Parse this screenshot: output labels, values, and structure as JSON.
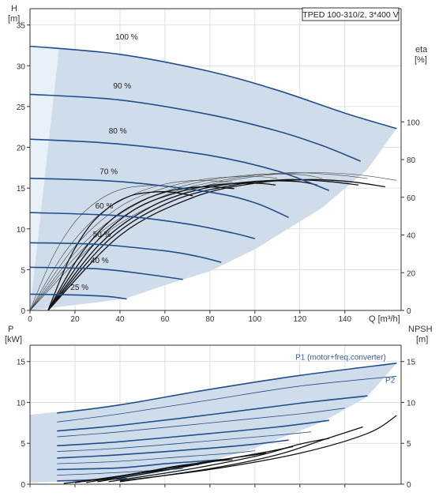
{
  "colors": {
    "region_fill": "#cfdcea",
    "region_left_fill": "#e8f1fa",
    "curve_blue": "#1f4e8c",
    "efficiency_black": "#111111",
    "efficiency_thin": "#444444",
    "axis": "#333333",
    "grid": "#d8d8d8",
    "label_blue": "#2a5ea8"
  },
  "chart_data": [
    {
      "type": "line",
      "title": "TPED 100-310/2, 3*400 V",
      "xlabel": "Q [m³/h]",
      "ylabel_left": [
        "H",
        "[m]"
      ],
      "ylabel_right": [
        "eta",
        "[%]"
      ],
      "xlim": [
        0,
        165
      ],
      "ylim": [
        0,
        37
      ],
      "ylim_right": [
        0,
        160
      ],
      "x_ticks": [
        0,
        20,
        40,
        60,
        80,
        100,
        120,
        140
      ],
      "y_ticks": [
        0,
        5,
        10,
        15,
        20,
        25,
        30,
        35
      ],
      "y_ticks_right": [
        0,
        20,
        40,
        60,
        80,
        100
      ],
      "grid": true,
      "operating_region": {
        "top_boundary": [
          [
            0,
            32.4
          ],
          [
            40,
            31.4
          ],
          [
            80,
            29.3
          ],
          [
            110,
            27.0
          ],
          [
            140,
            24.2
          ],
          [
            163,
            22.3
          ]
        ],
        "end_of_curve": [
          [
            163,
            22.3
          ],
          [
            150,
            17.3
          ],
          [
            130,
            12.6
          ],
          [
            100,
            7.5
          ],
          [
            80,
            4.8
          ],
          [
            60,
            3.1
          ],
          [
            42,
            1.4
          ],
          [
            0,
            0
          ]
        ],
        "minimum_flow_zone": [
          [
            0,
            0
          ],
          [
            0,
            32.4
          ],
          [
            13,
            32.4
          ],
          [
            0,
            0
          ]
        ]
      },
      "series": [
        {
          "name": "100 %",
          "x": [
            0,
            40,
            80,
            110,
            140,
            163
          ],
          "y": [
            32.4,
            31.4,
            29.3,
            27.0,
            24.2,
            22.3
          ]
        },
        {
          "name": "90 %",
          "x": [
            0,
            40,
            80,
            110,
            130,
            147
          ],
          "y": [
            26.5,
            25.8,
            24.0,
            22.0,
            20.2,
            18.3
          ]
        },
        {
          "name": "80 %",
          "x": [
            0,
            40,
            80,
            110,
            133
          ],
          "y": [
            21.0,
            20.4,
            19.0,
            17.1,
            14.7
          ]
        },
        {
          "name": "70 %",
          "x": [
            0,
            40,
            80,
            100,
            115
          ],
          "y": [
            16.2,
            15.8,
            14.5,
            13.2,
            11.4
          ]
        },
        {
          "name": "60 %",
          "x": [
            0,
            40,
            70,
            90,
            100
          ],
          "y": [
            12.0,
            11.6,
            10.6,
            9.5,
            8.8
          ]
        },
        {
          "name": "50 %",
          "x": [
            0,
            30,
            60,
            75,
            85
          ],
          "y": [
            8.3,
            8.1,
            7.3,
            6.6,
            5.9
          ]
        },
        {
          "name": "40 %",
          "x": [
            0,
            30,
            50,
            68
          ],
          "y": [
            5.3,
            5.1,
            4.5,
            3.8
          ]
        },
        {
          "name": "25 %",
          "x": [
            0,
            20,
            35,
            43
          ],
          "y": [
            2.0,
            1.9,
            1.7,
            1.4
          ]
        }
      ],
      "speed_labels": [
        {
          "text": "100 %",
          "x": 38,
          "y": 33.2
        },
        {
          "text": "90 %",
          "x": 37,
          "y": 27.2
        },
        {
          "text": "80 %",
          "x": 35,
          "y": 21.7
        },
        {
          "text": "70 %",
          "x": 31,
          "y": 16.7
        },
        {
          "text": "60 %",
          "x": 29,
          "y": 12.5
        },
        {
          "text": "50 %",
          "x": 28,
          "y": 9.0
        },
        {
          "text": "40 %",
          "x": 27,
          "y": 5.8
        },
        {
          "text": "25 %",
          "x": 18,
          "y": 2.5
        }
      ],
      "efficiency_right_axis_units": [
        {
          "x": [
            0,
            10,
            20,
            30,
            40,
            50,
            60,
            70
          ],
          "y": [
            0,
            28,
            47,
            58,
            64,
            66,
            66,
            64
          ]
        },
        {
          "x": [
            0,
            15,
            30,
            45,
            60,
            75,
            90
          ],
          "y": [
            0,
            30,
            50,
            61,
            67,
            69,
            68
          ]
        },
        {
          "x": [
            0,
            20,
            40,
            60,
            80,
            100,
            110
          ],
          "y": [
            0,
            34,
            55,
            65,
            70,
            71,
            70
          ]
        },
        {
          "x": [
            0,
            25,
            50,
            75,
            100,
            120,
            130
          ],
          "y": [
            0,
            37,
            58,
            68,
            72,
            72,
            70
          ]
        },
        {
          "x": [
            0,
            30,
            60,
            90,
            115,
            135,
            150
          ],
          "y": [
            0,
            40,
            61,
            70,
            73,
            72,
            70
          ]
        },
        {
          "x": [
            0,
            35,
            70,
            100,
            125,
            145,
            163
          ],
          "y": [
            0,
            42,
            63,
            71,
            73,
            72,
            69
          ]
        }
      ]
    },
    {
      "type": "line",
      "xlabel": "",
      "ylabel_left": [
        "P",
        "[kW]"
      ],
      "ylabel_right": [
        "NPSH",
        "[m]"
      ],
      "xlim": [
        0,
        165
      ],
      "ylim": [
        0,
        17
      ],
      "y_ticks": [
        0,
        5,
        10,
        15
      ],
      "y_ticks_right": [
        0,
        5,
        10,
        15
      ],
      "grid": true,
      "annotations": [
        {
          "text": "P1 (motor+freq.converter)",
          "x": 118,
          "y": 15.2
        },
        {
          "text": "P2",
          "x": 158,
          "y": 12.4
        }
      ],
      "operating_region": {
        "upper": [
          [
            0,
            8.5
          ],
          [
            40,
            9.7
          ],
          [
            80,
            11.6
          ],
          [
            120,
            13.3
          ],
          [
            163,
            14.8
          ]
        ],
        "lower": [
          [
            163,
            14.8
          ],
          [
            150,
            10.7
          ],
          [
            130,
            7.6
          ],
          [
            100,
            4.4
          ],
          [
            70,
            2.0
          ],
          [
            42,
            0.6
          ],
          [
            0,
            0.2
          ]
        ]
      },
      "series": [
        {
          "name": "P1 (motor+freq.converter)",
          "x": [
            12,
            40,
            80,
            120,
            163
          ],
          "y": [
            8.7,
            9.7,
            11.6,
            13.3,
            14.8
          ]
        },
        {
          "name": "P2",
          "x": [
            12,
            40,
            80,
            120,
            163
          ],
          "y": [
            7.6,
            8.6,
            10.3,
            12.0,
            13.2
          ]
        },
        {
          "x": [
            12,
            40,
            80,
            120,
            150
          ],
          "y": [
            6.5,
            7.2,
            8.5,
            9.9,
            10.8
          ]
        },
        {
          "x": [
            12,
            40,
            80,
            120,
            140
          ],
          "y": [
            5.8,
            6.4,
            7.5,
            8.6,
            9.3
          ]
        },
        {
          "x": [
            12,
            40,
            80,
            110,
            133
          ],
          "y": [
            4.7,
            5.2,
            6.2,
            7.0,
            7.8
          ]
        },
        {
          "x": [
            12,
            40,
            80,
            110,
            125
          ],
          "y": [
            4.0,
            4.4,
            5.3,
            6.0,
            6.4
          ]
        },
        {
          "x": [
            12,
            40,
            80,
            100,
            115
          ],
          "y": [
            3.2,
            3.6,
            4.4,
            4.9,
            5.4
          ]
        },
        {
          "x": [
            12,
            40,
            70,
            90,
            100
          ],
          "y": [
            2.5,
            2.8,
            3.4,
            3.8,
            4.1
          ]
        },
        {
          "x": [
            12,
            40,
            60,
            75,
            85
          ],
          "y": [
            1.8,
            2.0,
            2.5,
            2.8,
            3.0
          ]
        },
        {
          "x": [
            12,
            30,
            50,
            68
          ],
          "y": [
            1.1,
            1.3,
            1.6,
            1.9
          ]
        },
        {
          "x": [
            12,
            25,
            35,
            43
          ],
          "y": [
            0.4,
            0.5,
            0.6,
            0.7
          ]
        }
      ],
      "npsh_curves": [
        {
          "x": [
            40,
            80,
            120,
            150,
            163
          ],
          "y": [
            0.4,
            1.8,
            3.8,
            6.2,
            8.4
          ]
        },
        {
          "x": [
            40,
            80,
            110,
            130,
            148
          ],
          "y": [
            0.3,
            1.9,
            3.6,
            5.4,
            7.0
          ]
        },
        {
          "x": [
            35,
            70,
            100,
            120,
            133
          ],
          "y": [
            0.3,
            1.8,
            3.4,
            4.9,
            5.6
          ]
        },
        {
          "x": [
            30,
            60,
            90,
            108,
            117
          ],
          "y": [
            0.3,
            1.7,
            3.2,
            4.1,
            4.6
          ]
        },
        {
          "x": [
            25,
            50,
            75,
            95,
            105
          ],
          "y": [
            0.2,
            1.4,
            2.6,
            3.4,
            3.8
          ]
        },
        {
          "x": [
            20,
            45,
            65,
            82,
            90
          ],
          "y": [
            0.2,
            1.2,
            2.2,
            2.8,
            3.0
          ]
        },
        {
          "x": [
            20,
            40,
            55,
            68,
            75
          ],
          "y": [
            0.2,
            1.0,
            1.7,
            2.2,
            2.4
          ]
        },
        {
          "x": [
            15,
            35,
            50,
            62
          ],
          "y": [
            0.1,
            0.8,
            1.4,
            1.8
          ]
        }
      ]
    }
  ]
}
